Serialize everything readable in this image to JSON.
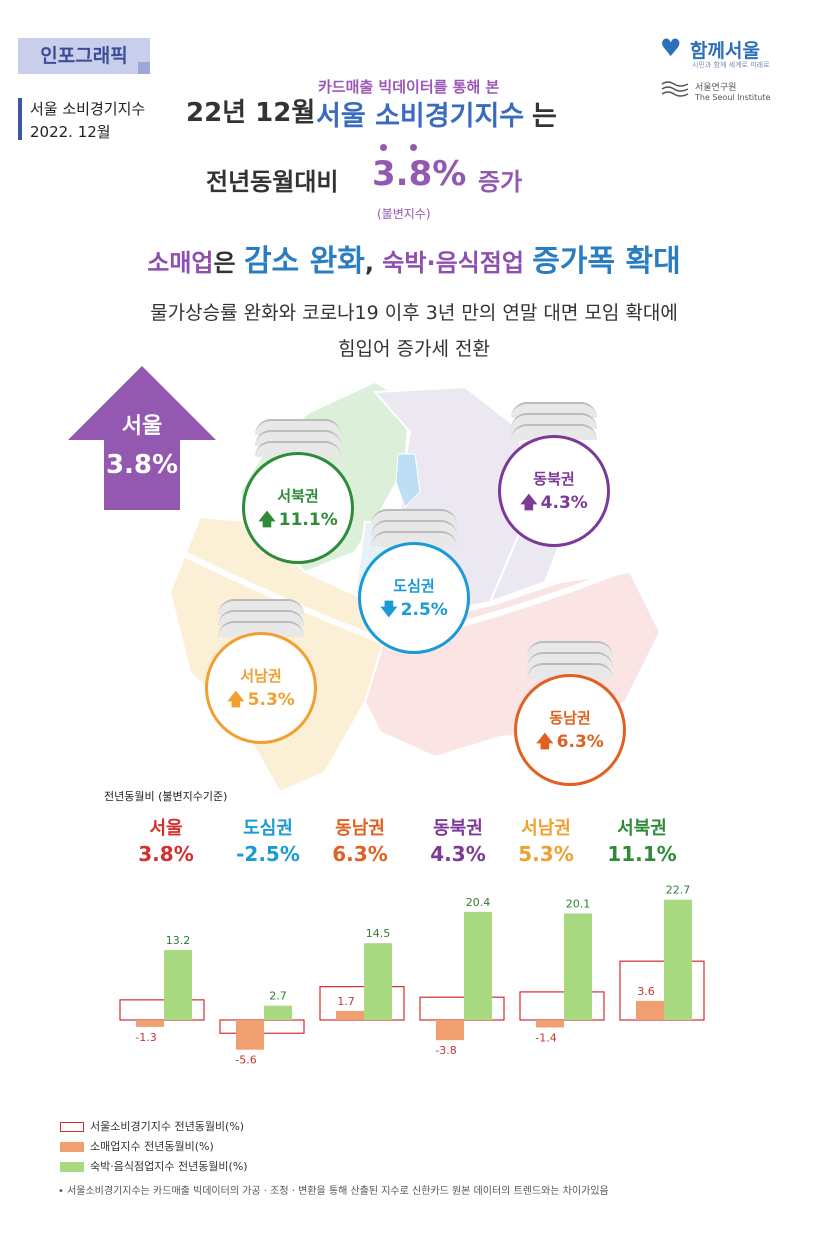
{
  "header": {
    "tag": "인포그래픽",
    "side_title": "서울 소비경기지수",
    "side_date": "2022. 12월",
    "logo_text": "함께서울",
    "logo_sub": "시민과 함께 세계로 미래로",
    "institute_kr": "서울연구원",
    "institute_en": "The Seoul Institute"
  },
  "headline": {
    "period": "22년 12월",
    "subtitle": "카드매출 빅데이터를 통해 본",
    "main": "서울 소비경기지수",
    "particle": "는",
    "compare": "전년동월대비",
    "value": "3.8%",
    "direction": "증가",
    "note": "(불변지수)"
  },
  "summary": {
    "p1": "소매업",
    "p2": "은 ",
    "p3": "감소 완화",
    "p4": ", ",
    "p5": "숙박·음식점업",
    "p6": " ",
    "p7": "증가폭 확대"
  },
  "description": {
    "line1": "물가상승률 완화와 코로나19 이후 3년 만의 연말 대면 모임 확대에",
    "line2": "힘입어 증가세 전환"
  },
  "map": {
    "seoul_label": "서울",
    "seoul_value": "3.8%",
    "regions": [
      {
        "name": "서북권",
        "value": "11.1%",
        "dir": "up",
        "color": "#2e8b3a"
      },
      {
        "name": "동북권",
        "value": "4.3%",
        "dir": "up",
        "color": "#7b3a96"
      },
      {
        "name": "도심권",
        "value": "2.5%",
        "dir": "down",
        "color": "#1a9ad6"
      },
      {
        "name": "서남권",
        "value": "5.3%",
        "dir": "up",
        "color": "#f0a030"
      },
      {
        "name": "동남권",
        "value": "6.3%",
        "dir": "up",
        "color": "#e06020"
      }
    ]
  },
  "stats": {
    "title": "전년동월비 (불변지수기준)",
    "items": [
      {
        "name": "서울",
        "value": "3.8%",
        "color": "#d32f2f"
      },
      {
        "name": "도심권",
        "value": "-2.5%",
        "color": "#1a9ad6"
      },
      {
        "name": "동남권",
        "value": "6.3%",
        "color": "#e06020"
      },
      {
        "name": "동북권",
        "value": "4.3%",
        "color": "#7b3a96"
      },
      {
        "name": "서남권",
        "value": "5.3%",
        "color": "#f0a030"
      },
      {
        "name": "서북권",
        "value": "11.1%",
        "color": "#2e8b3a"
      }
    ]
  },
  "chart_data": {
    "type": "bar",
    "categories": [
      "서울",
      "도심권",
      "동남권",
      "동북권",
      "서남권",
      "서북권"
    ],
    "series": [
      {
        "name": "서울소비경기지수 전년동월비(%)",
        "values": [
          3.8,
          -2.5,
          6.3,
          4.3,
          5.3,
          11.1
        ],
        "color": "#d32f2f",
        "style": "outline"
      },
      {
        "name": "소매업지수 전년동월비(%)",
        "values": [
          -1.3,
          -5.6,
          1.7,
          -3.8,
          -1.4,
          3.6
        ],
        "color": "#f0a070"
      },
      {
        "name": "숙박·음식점업지수 전년동월비(%)",
        "values": [
          13.2,
          2.7,
          14.5,
          20.4,
          20.1,
          22.7
        ],
        "color": "#a8d880"
      }
    ],
    "labels_retail": [
      "-1.3",
      "-5.6",
      "1.7",
      "-3.8",
      "-1.4",
      "3.6"
    ],
    "labels_food": [
      "13.2",
      "2.7",
      "14.5",
      "20.4",
      "20.1",
      "22.7"
    ]
  },
  "footnote": "• 서울소비경기지수는 카드매출 빅데이터의 가공 · 조정 · 변환을 통해 산출된 지수로 신한카드 원본 데이터의 트렌드와는 차이가있음"
}
